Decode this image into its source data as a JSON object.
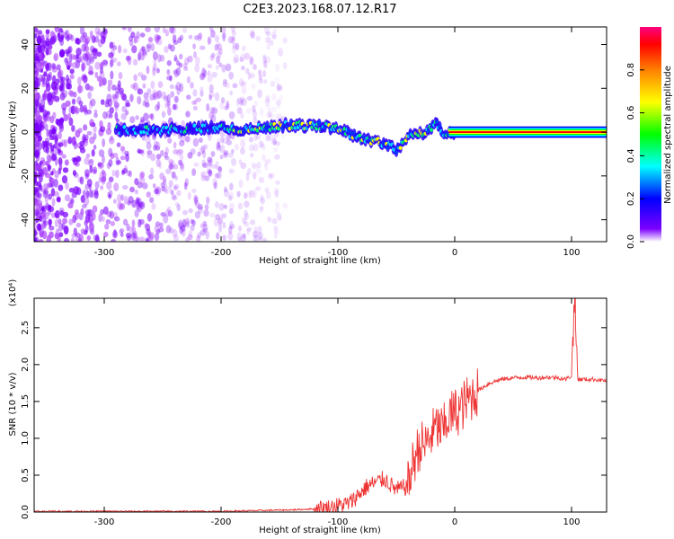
{
  "title": "C2E3.2023.168.07.12.R17",
  "chart_data": [
    {
      "type": "heatmap",
      "xlabel": "Height of straight line (km)",
      "ylabel": "Frequency (Hz)",
      "xlim": [
        -360,
        130
      ],
      "ylim": [
        -50,
        48
      ],
      "x_ticks": [
        -300,
        -200,
        -100,
        0,
        100
      ],
      "x_tick_labels": [
        "-300",
        "-200",
        "-100",
        "0",
        "100"
      ],
      "y_ticks": [
        -40,
        -20,
        0,
        20,
        40
      ],
      "y_tick_labels": [
        "-40",
        "-20",
        "0",
        "20",
        "40"
      ],
      "colorbar": {
        "label": "Normalized spectral amplitude",
        "range": [
          0,
          1
        ],
        "ticks": [
          0.0,
          0.2,
          0.4,
          0.6,
          0.8
        ],
        "tick_labels": [
          "0.0",
          "0.2",
          "0.4",
          "0.6",
          "0.8"
        ],
        "colormap": [
          "#ffffff",
          "#7b00ff",
          "#0000ff",
          "#00ffff",
          "#00ff00",
          "#ffff00",
          "#ff8000",
          "#ff0000",
          "#ff0080"
        ]
      },
      "ridge": {
        "x": [
          -290,
          -250,
          -200,
          -180,
          -150,
          -120,
          -100,
          -80,
          -60,
          -50,
          -40,
          -30,
          -20,
          -15,
          -10,
          0,
          50,
          100,
          130
        ],
        "y": [
          1,
          1,
          2,
          1,
          3,
          3,
          2,
          -3,
          -5,
          -8,
          -2,
          -1,
          2,
          4,
          0,
          0,
          0,
          0,
          0
        ]
      },
      "grid": false
    },
    {
      "type": "line",
      "xlabel": "Height of straight line (km)",
      "ylabel": "SNR (10 * v/v)",
      "y_scale_label": "(x10⁴)",
      "xlim": [
        -360,
        130
      ],
      "ylim": [
        0,
        2.9
      ],
      "x_ticks": [
        -300,
        -200,
        -100,
        0,
        100
      ],
      "x_tick_labels": [
        "-300",
        "-200",
        "-100",
        "0",
        "100"
      ],
      "y_ticks": [
        0.0,
        0.5,
        1.0,
        1.5,
        2.0,
        2.5
      ],
      "y_tick_labels": [
        "0.0",
        "0.5",
        "1.0",
        "1.5",
        "2.0",
        "2.5"
      ],
      "line_color": "#ee3333",
      "series": [
        {
          "x": [
            -360,
            -300,
            -250,
            -200,
            -170,
            -140,
            -110,
            -90,
            -75,
            -60,
            -50,
            -40,
            -35,
            -30,
            -25,
            -20,
            -15,
            -10,
            -5,
            0,
            5,
            10,
            20,
            30,
            40,
            50,
            60,
            70,
            80,
            90,
            95,
            100,
            103,
            105,
            110,
            120,
            130
          ],
          "y": [
            0.01,
            0.01,
            0.01,
            0.01,
            0.02,
            0.03,
            0.05,
            0.12,
            0.35,
            0.45,
            0.3,
            0.35,
            0.7,
            0.9,
            0.9,
            1.05,
            1.15,
            1.1,
            1.3,
            1.35,
            1.4,
            1.5,
            1.65,
            1.75,
            1.8,
            1.82,
            1.83,
            1.82,
            1.83,
            1.82,
            1.8,
            1.85,
            2.85,
            1.8,
            1.8,
            1.8,
            1.78
          ]
        }
      ],
      "grid": false
    }
  ]
}
